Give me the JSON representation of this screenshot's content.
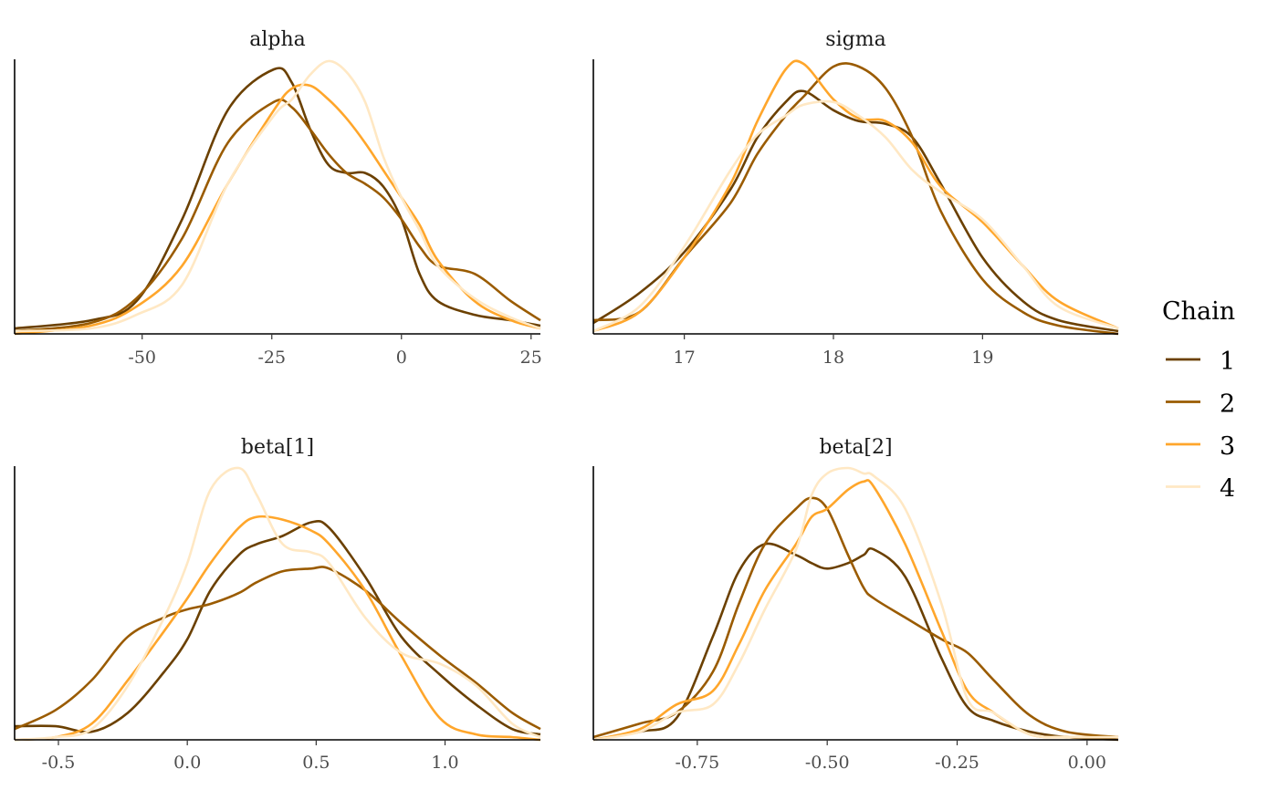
{
  "chart_data": {
    "type": "line",
    "subtype": "density-overlay",
    "legend": {
      "title": "Chain",
      "placement": "right",
      "entries": [
        "1",
        "2",
        "3",
        "4"
      ]
    },
    "colors": [
      "#6b4000",
      "#9a5b00",
      "#ffa62b",
      "#ffe8c4"
    ],
    "panels": [
      {
        "title": "alpha",
        "xlim": [
          -74.6,
          26.8
        ],
        "ticks": [
          -50,
          -25,
          0,
          25
        ],
        "tick_labels": [
          "-50",
          "-25",
          "0",
          "25"
        ],
        "x": [
          -74.6,
          -59.9,
          -51.1,
          -42.3,
          -33.5,
          -24.6,
          -21.1,
          -17.6,
          -14.1,
          -10.6,
          -7.0,
          -3.5,
          0,
          3.5,
          7.0,
          14.1,
          21.1,
          26.8
        ],
        "series": [
          {
            "name": "1",
            "values": [
              0.02,
              0.05,
              0.12,
              0.42,
              0.82,
              0.97,
              0.92,
              0.75,
              0.62,
              0.59,
              0.59,
              0.54,
              0.42,
              0.22,
              0.12,
              0.07,
              0.05,
              0.03
            ]
          },
          {
            "name": "2",
            "values": [
              0.01,
              0.04,
              0.13,
              0.35,
              0.7,
              0.85,
              0.83,
              0.75,
              0.66,
              0.59,
              0.55,
              0.5,
              0.42,
              0.32,
              0.25,
              0.22,
              0.12,
              0.05
            ]
          },
          {
            "name": "3",
            "values": [
              0.0,
              0.03,
              0.1,
              0.25,
              0.55,
              0.82,
              0.9,
              0.91,
              0.86,
              0.79,
              0.7,
              0.6,
              0.5,
              0.4,
              0.27,
              0.12,
              0.05,
              0.02
            ]
          },
          {
            "name": "4",
            "values": [
              0.01,
              0.02,
              0.07,
              0.18,
              0.55,
              0.8,
              0.86,
              0.95,
              1.0,
              0.96,
              0.85,
              0.65,
              0.5,
              0.38,
              0.25,
              0.13,
              0.06,
              0.02
            ]
          }
        ]
      },
      {
        "title": "sigma",
        "xlim": [
          16.39,
          19.91
        ],
        "ticks": [
          17,
          18,
          19
        ],
        "tick_labels": [
          "17",
          "18",
          "19"
        ],
        "x": [
          16.39,
          16.7,
          17.0,
          17.31,
          17.49,
          17.68,
          17.8,
          18.0,
          18.17,
          18.35,
          18.53,
          18.72,
          19.0,
          19.27,
          19.51,
          19.91
        ],
        "series": [
          {
            "name": "1",
            "values": [
              0.04,
              0.15,
              0.3,
              0.53,
              0.72,
              0.85,
              0.89,
              0.82,
              0.78,
              0.77,
              0.72,
              0.55,
              0.28,
              0.12,
              0.05,
              0.01
            ]
          },
          {
            "name": "2",
            "values": [
              0.05,
              0.08,
              0.28,
              0.48,
              0.66,
              0.8,
              0.87,
              0.98,
              0.98,
              0.9,
              0.72,
              0.45,
              0.2,
              0.08,
              0.03,
              0.0
            ]
          },
          {
            "name": "3",
            "values": [
              0.01,
              0.08,
              0.28,
              0.55,
              0.78,
              0.97,
              0.99,
              0.86,
              0.79,
              0.78,
              0.7,
              0.54,
              0.41,
              0.25,
              0.12,
              0.02
            ]
          },
          {
            "name": "4",
            "values": [
              0.01,
              0.1,
              0.32,
              0.6,
              0.73,
              0.8,
              0.84,
              0.85,
              0.8,
              0.72,
              0.6,
              0.52,
              0.42,
              0.25,
              0.1,
              0.02
            ]
          }
        ]
      },
      {
        "title": "beta[1]",
        "xlim": [
          -0.67,
          1.37
        ],
        "ticks": [
          -0.5,
          0.0,
          0.5,
          1.0
        ],
        "tick_labels": [
          "-0.5",
          "0.0",
          "0.5",
          "1.0"
        ],
        "x": [
          -0.67,
          -0.51,
          -0.37,
          -0.23,
          -0.09,
          0,
          0.09,
          0.2,
          0.27,
          0.37,
          0.48,
          0.55,
          0.69,
          0.83,
          0.98,
          1.12,
          1.26,
          1.37
        ],
        "series": [
          {
            "name": "1",
            "values": [
              0.05,
              0.05,
              0.03,
              0.1,
              0.25,
              0.37,
              0.55,
              0.68,
              0.72,
              0.75,
              0.8,
              0.78,
              0.6,
              0.38,
              0.24,
              0.13,
              0.04,
              0.02
            ]
          },
          {
            "name": "2",
            "values": [
              0.04,
              0.11,
              0.22,
              0.38,
              0.45,
              0.48,
              0.5,
              0.54,
              0.58,
              0.62,
              0.63,
              0.63,
              0.55,
              0.43,
              0.31,
              0.21,
              0.1,
              0.04
            ]
          },
          {
            "name": "3",
            "values": [
              0.0,
              0.01,
              0.06,
              0.22,
              0.4,
              0.52,
              0.65,
              0.78,
              0.82,
              0.81,
              0.77,
              0.72,
              0.55,
              0.31,
              0.08,
              0.02,
              0.01,
              0.0
            ]
          },
          {
            "name": "4",
            "values": [
              0.0,
              0.01,
              0.04,
              0.2,
              0.45,
              0.65,
              0.92,
              1.0,
              0.9,
              0.72,
              0.69,
              0.65,
              0.45,
              0.32,
              0.28,
              0.2,
              0.06,
              0.01
            ]
          }
        ]
      },
      {
        "title": "beta[2]",
        "xlim": [
          -0.95,
          0.06
        ],
        "ticks": [
          -0.75,
          -0.5,
          -0.25,
          0.0
        ],
        "tick_labels": [
          "-0.75",
          "-0.50",
          "-0.25",
          "0.00"
        ],
        "x": [
          -0.95,
          -0.86,
          -0.79,
          -0.72,
          -0.67,
          -0.62,
          -0.56,
          -0.53,
          -0.5,
          -0.46,
          -0.43,
          -0.41,
          -0.35,
          -0.28,
          -0.23,
          -0.18,
          -0.11,
          -0.04,
          0.06
        ],
        "series": [
          {
            "name": "1",
            "values": [
              0.0,
              0.03,
              0.08,
              0.38,
              0.62,
              0.72,
              0.68,
              0.65,
              0.63,
              0.65,
              0.68,
              0.7,
              0.6,
              0.3,
              0.12,
              0.07,
              0.03,
              0.01,
              0.0
            ]
          },
          {
            "name": "2",
            "values": [
              0.01,
              0.06,
              0.1,
              0.25,
              0.5,
              0.72,
              0.85,
              0.89,
              0.85,
              0.68,
              0.56,
              0.52,
              0.45,
              0.37,
              0.32,
              0.22,
              0.09,
              0.03,
              0.01
            ]
          },
          {
            "name": "3",
            "values": [
              0.0,
              0.04,
              0.13,
              0.18,
              0.35,
              0.55,
              0.72,
              0.82,
              0.85,
              0.92,
              0.95,
              0.93,
              0.72,
              0.4,
              0.18,
              0.1,
              0.02,
              0.01,
              0.01
            ]
          },
          {
            "name": "4",
            "values": [
              0.0,
              0.03,
              0.1,
              0.13,
              0.28,
              0.48,
              0.7,
              0.9,
              0.98,
              1.0,
              0.98,
              0.97,
              0.85,
              0.5,
              0.15,
              0.1,
              0.02,
              0.01,
              0.01
            ]
          }
        ]
      }
    ],
    "ylabel": "",
    "xlabel": "",
    "grid": false
  }
}
